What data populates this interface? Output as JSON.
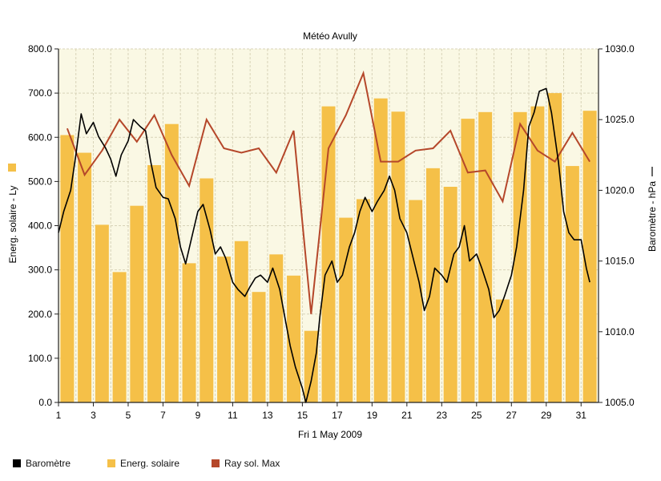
{
  "chart_data": {
    "type": "bar",
    "title": "Météo Avully",
    "xlabel": "Fri 1 May 2009",
    "ylabel_left": "Energ. solaire - Ly",
    "ylabel_right": "Baromètre - hPa",
    "ylim_left": [
      0,
      800
    ],
    "ylim_right": [
      1005,
      1030
    ],
    "yticks_left": [
      "0.0",
      "100.0",
      "200.0",
      "300.0",
      "400.0",
      "500.0",
      "600.0",
      "700.0",
      "800.0"
    ],
    "yticks_right": [
      "1005.0",
      "1010.0",
      "1015.0",
      "1020.0",
      "1025.0",
      "1030.0"
    ],
    "x_ticks": [
      "1",
      "3",
      "5",
      "7",
      "9",
      "11",
      "13",
      "15",
      "17",
      "19",
      "21",
      "23",
      "25",
      "27",
      "29",
      "31"
    ],
    "days": [
      1,
      2,
      3,
      4,
      5,
      6,
      7,
      8,
      9,
      10,
      11,
      12,
      13,
      14,
      15,
      16,
      17,
      18,
      19,
      20,
      21,
      22,
      23,
      24,
      25,
      26,
      27,
      28,
      29,
      30,
      31
    ],
    "grid": true,
    "legend_position": "bottom",
    "series": [
      {
        "name": "Energ. solaire",
        "type": "bar",
        "axis": "left",
        "color": "#F5C048",
        "values": [
          605,
          565,
          402,
          295,
          445,
          537,
          630,
          315,
          507,
          330,
          365,
          250,
          335,
          287,
          162,
          670,
          418,
          460,
          688,
          658,
          458,
          530,
          488,
          642,
          657,
          233,
          657,
          670,
          700,
          535,
          660
        ]
      },
      {
        "name": "Ray sol. Max",
        "type": "line",
        "axis": "left",
        "color": "#B5472A",
        "values": [
          620,
          515,
          570,
          640,
          590,
          650,
          560,
          490,
          640,
          575,
          565,
          575,
          520,
          615,
          200,
          575,
          650,
          745,
          545,
          545,
          570,
          575,
          615,
          520,
          525,
          455,
          630,
          570,
          545,
          610,
          545
        ]
      },
      {
        "name": "Baromètre",
        "type": "line",
        "axis": "right",
        "color": "#000000",
        "x": [
          1.0,
          1.3,
          1.7,
          2.0,
          2.3,
          2.6,
          3.0,
          3.3,
          3.7,
          4.0,
          4.3,
          4.6,
          5.0,
          5.3,
          5.7,
          6.0,
          6.3,
          6.6,
          7.0,
          7.3,
          7.7,
          8.0,
          8.3,
          8.6,
          9.0,
          9.3,
          9.7,
          10.0,
          10.3,
          10.6,
          11.0,
          11.3,
          11.7,
          12.0,
          12.3,
          12.6,
          13.0,
          13.3,
          13.7,
          14.0,
          14.3,
          14.6,
          15.0,
          15.2,
          15.5,
          15.8,
          16.0,
          16.3,
          16.7,
          17.0,
          17.3,
          17.7,
          18.0,
          18.3,
          18.6,
          19.0,
          19.3,
          19.7,
          20.0,
          20.3,
          20.6,
          21.0,
          21.3,
          21.7,
          22.0,
          22.3,
          22.6,
          23.0,
          23.3,
          23.7,
          24.0,
          24.3,
          24.6,
          25.0,
          25.3,
          25.7,
          26.0,
          26.3,
          26.6,
          27.0,
          27.3,
          27.7,
          28.0,
          28.3,
          28.6,
          29.0,
          29.3,
          29.7,
          30.0,
          30.3,
          30.6,
          31.0,
          31.3,
          31.5
        ],
        "values": [
          1017.0,
          1018.5,
          1020.0,
          1022.5,
          1025.4,
          1024.0,
          1024.8,
          1023.8,
          1023.0,
          1022.2,
          1021.0,
          1022.5,
          1023.5,
          1025.0,
          1024.5,
          1024.2,
          1022.0,
          1020.2,
          1019.5,
          1019.4,
          1018.0,
          1016.0,
          1014.8,
          1016.4,
          1018.5,
          1019.0,
          1017.2,
          1015.5,
          1016.0,
          1015.2,
          1013.5,
          1013.0,
          1012.5,
          1013.2,
          1013.8,
          1014.0,
          1013.5,
          1014.5,
          1013.0,
          1011.0,
          1009.0,
          1007.5,
          1006.0,
          1005.0,
          1006.5,
          1008.5,
          1011.0,
          1014.0,
          1015.0,
          1013.5,
          1014.0,
          1016.0,
          1017.0,
          1018.5,
          1019.5,
          1018.5,
          1019.2,
          1020.0,
          1021.0,
          1020.0,
          1018.0,
          1017.0,
          1015.5,
          1013.5,
          1011.5,
          1012.5,
          1014.5,
          1014.0,
          1013.5,
          1015.5,
          1016.0,
          1017.5,
          1015.0,
          1015.5,
          1014.5,
          1013.0,
          1011.0,
          1011.5,
          1012.5,
          1014.0,
          1016.0,
          1020.0,
          1024.5,
          1025.5,
          1027.0,
          1027.2,
          1025.5,
          1022.0,
          1018.5,
          1017.0,
          1016.5,
          1016.5,
          1014.5,
          1013.5
        ]
      }
    ]
  },
  "legend": [
    {
      "label": "Baromètre",
      "color": "#000000",
      "swatch_icon": "square-swatch-icon"
    },
    {
      "label": "Energ. solaire",
      "color": "#F5C048",
      "swatch_icon": "square-swatch-icon"
    },
    {
      "label": "Ray sol. Max",
      "color": "#B5472A",
      "swatch_icon": "square-swatch-icon"
    }
  ],
  "colors": {
    "plot_background": "#FAF8E4",
    "grid": "#D8D3B8",
    "axis": "#222222"
  }
}
